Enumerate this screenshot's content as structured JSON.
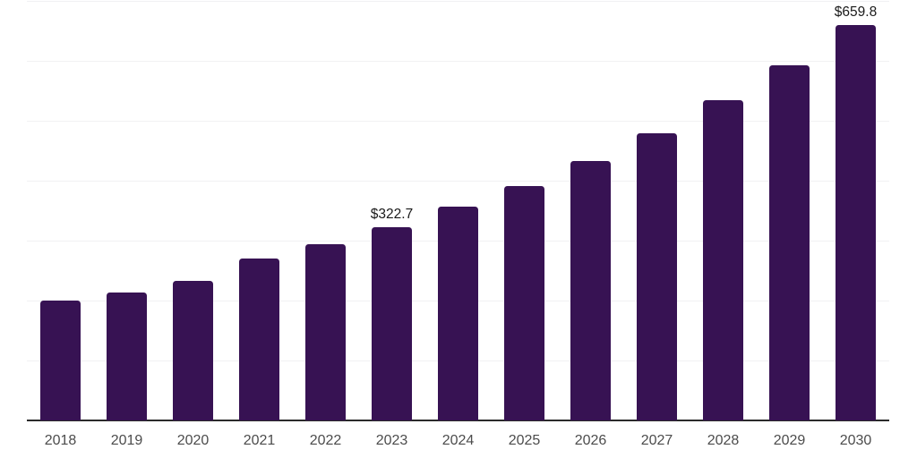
{
  "chart_data": {
    "type": "bar",
    "title": "",
    "xlabel": "",
    "ylabel": "",
    "categories": [
      "2018",
      "2019",
      "2020",
      "2021",
      "2022",
      "2023",
      "2024",
      "2025",
      "2026",
      "2027",
      "2028",
      "2029",
      "2030"
    ],
    "values": [
      200.0,
      213.5,
      233.5,
      269.5,
      293.5,
      322.7,
      356.4,
      391.5,
      433.4,
      479.4,
      534.5,
      592.8,
      659.8
    ],
    "labels": [
      "",
      "",
      "",
      "",
      "",
      "$322.7",
      "",
      "",
      "",
      "",
      "",
      "",
      "$659.8"
    ],
    "value_prefix": "$",
    "ylim": [
      0,
      700
    ],
    "ytick_step": 100,
    "grid": "horizontal",
    "y_axis_labels_shown": false,
    "legend_position": "none",
    "colors": {
      "bar": "#371253",
      "axis_line": "#2b2b2b",
      "gridline": "#f1f1f3",
      "x_tick_label": "#4c4c4c",
      "data_label": "#1a1a1a",
      "background": "#ffffff"
    }
  }
}
